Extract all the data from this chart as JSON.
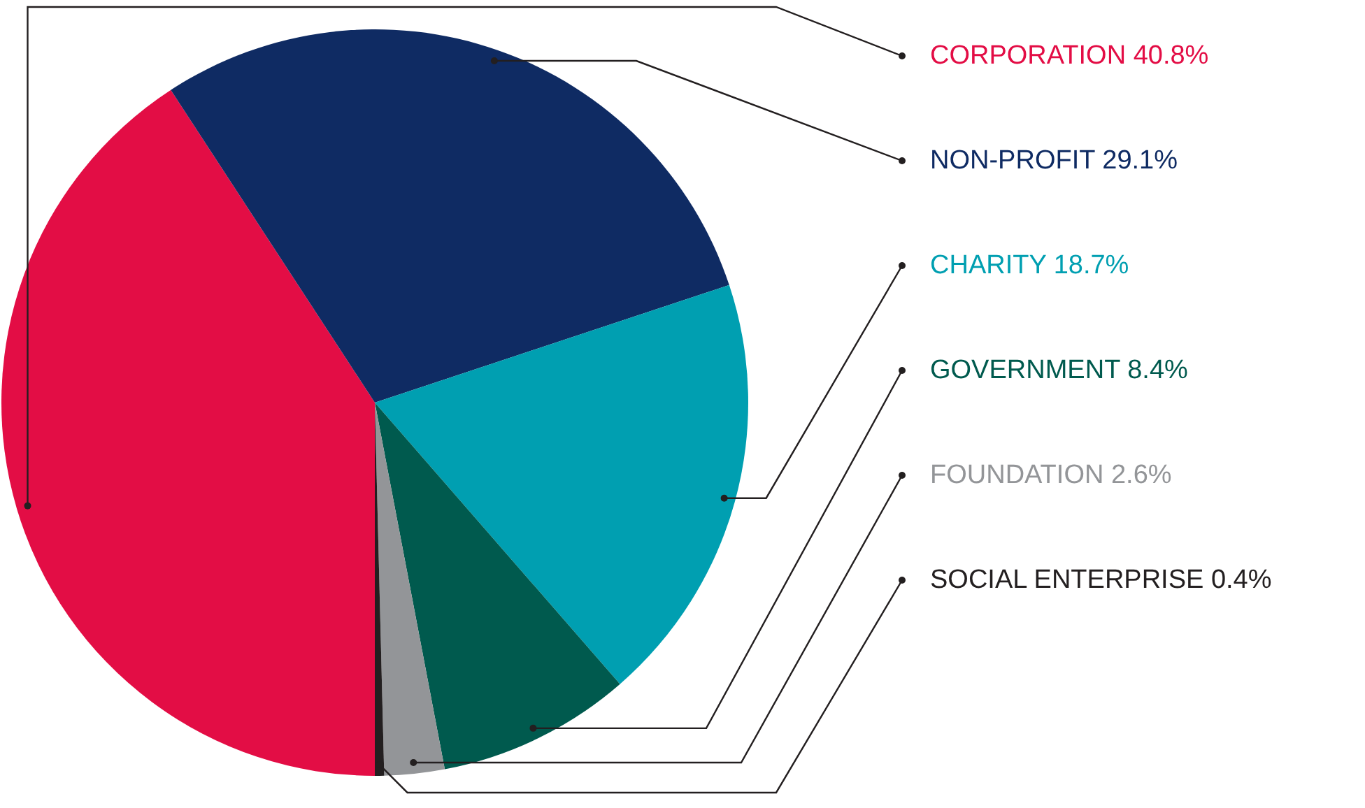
{
  "chart_data": {
    "type": "pie",
    "categories": [
      "CORPORATION",
      "NON-PROFIT",
      "CHARITY",
      "GOVERNMENT",
      "FOUNDATION",
      "SOCIAL ENTERPRISE"
    ],
    "values": [
      40.8,
      29.1,
      18.7,
      8.4,
      2.6,
      0.4
    ],
    "value_labels": [
      "40.8%",
      "29.1%",
      "18.7%",
      "8.4%",
      "2.6%",
      "0.4%"
    ],
    "colors": [
      "#e30d45",
      "#0f2b63",
      "#009fb1",
      "#005a4e",
      "#939598",
      "#231f20"
    ]
  }
}
